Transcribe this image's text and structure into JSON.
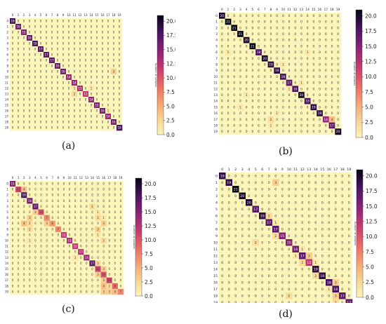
{
  "chart_data": [
    {
      "panel": "a",
      "label": "(a)",
      "type": "heatmap",
      "x": [
        "0",
        "1",
        "2",
        "3",
        "4",
        "5",
        "6",
        "7",
        "8",
        "9",
        "10",
        "11",
        "12",
        "13",
        "14",
        "15",
        "16",
        "17",
        "18",
        "19"
      ],
      "y": [
        "0",
        "1",
        "2",
        "3",
        "4",
        "5",
        "6",
        "7",
        "8",
        "9",
        "10",
        "11",
        "12",
        "13",
        "14",
        "15",
        "16",
        "17",
        "18",
        "19"
      ],
      "diag": [
        18,
        16,
        15,
        16,
        18,
        17,
        17,
        17,
        16,
        16,
        14,
        14,
        13,
        12,
        14,
        15,
        16,
        14,
        16,
        18
      ],
      "off": [
        [
          9,
          18,
          3
        ],
        [
          13,
          11,
          2
        ],
        [
          12,
          11,
          1
        ],
        [
          12,
          14,
          1
        ],
        [
          16,
          17,
          1
        ]
      ],
      "colorbar": {
        "label": "Number of samples",
        "ticks": [
          "0.0",
          "2.5",
          "5.0",
          "7.5",
          "10.0",
          "12.5",
          "15.0",
          "17.5",
          "20.0"
        ],
        "range": [
          0,
          21
        ]
      }
    },
    {
      "panel": "b",
      "label": "(b)",
      "type": "heatmap",
      "x": [
        "0",
        "1",
        "2",
        "3",
        "4",
        "5",
        "6",
        "7",
        "8",
        "9",
        "10",
        "11",
        "12",
        "13",
        "14",
        "15",
        "16",
        "17",
        "18",
        "19"
      ],
      "y": [
        "0",
        "1",
        "2",
        "3",
        "4",
        "5",
        "6",
        "7",
        "8",
        "9",
        "10",
        "11",
        "12",
        "13",
        "14",
        "15",
        "16",
        "17",
        "18",
        "19"
      ],
      "diag": [
        20,
        21,
        21,
        21,
        20,
        21,
        18,
        20,
        19,
        19,
        18,
        17,
        18,
        20,
        18,
        19,
        19,
        14,
        17,
        20
      ],
      "off": [
        [
          17,
          18,
          4
        ],
        [
          17,
          8,
          2
        ],
        [
          18,
          8,
          1
        ],
        [
          12,
          11,
          1
        ],
        [
          11,
          13,
          1
        ],
        [
          16,
          9,
          1
        ],
        [
          6,
          1,
          1
        ],
        [
          13,
          4,
          1
        ],
        [
          15,
          3,
          1
        ],
        [
          8,
          10,
          1
        ],
        [
          6,
          14,
          1
        ]
      ],
      "colorbar": {
        "label": "Number of samples",
        "ticks": [
          "0.0",
          "2.5",
          "5.0",
          "7.5",
          "10.0",
          "12.5",
          "15.0",
          "17.5",
          "20.0"
        ],
        "range": [
          0,
          21
        ]
      }
    },
    {
      "panel": "c",
      "label": "(c)",
      "type": "heatmap",
      "x": [
        "0",
        "1",
        "2",
        "3",
        "4",
        "5",
        "6",
        "7",
        "8",
        "9",
        "10",
        "11",
        "12",
        "13",
        "14",
        "15",
        "16",
        "17",
        "18",
        "19"
      ],
      "y": [
        "0",
        "1",
        "2",
        "3",
        "4",
        "5",
        "6",
        "7",
        "8",
        "9",
        "10",
        "11",
        "12",
        "13",
        "14",
        "15",
        "16",
        "17",
        "18",
        "19"
      ],
      "diag": [
        15,
        11,
        18,
        16,
        17,
        10,
        7,
        6,
        7,
        12,
        13,
        12,
        13,
        14,
        17,
        11,
        10,
        11,
        9,
        7
      ],
      "off": [
        [
          1,
          2,
          4
        ],
        [
          5,
          4,
          3
        ],
        [
          6,
          3,
          3
        ],
        [
          7,
          2,
          4
        ],
        [
          7,
          6,
          3
        ],
        [
          7,
          3,
          2
        ],
        [
          8,
          3,
          2
        ],
        [
          6,
          15,
          2
        ],
        [
          8,
          15,
          3
        ],
        [
          7,
          16,
          3
        ],
        [
          15,
          16,
          3
        ],
        [
          17,
          16,
          3
        ],
        [
          18,
          16,
          4
        ],
        [
          19,
          16,
          3
        ],
        [
          19,
          18,
          4
        ],
        [
          19,
          17,
          3
        ],
        [
          18,
          17,
          2
        ],
        [
          16,
          15,
          3
        ],
        [
          14,
          15,
          2
        ],
        [
          13,
          11,
          1
        ],
        [
          4,
          14,
          2
        ],
        [
          5,
          15,
          1
        ],
        [
          6,
          16,
          1
        ],
        [
          9,
          15,
          1
        ],
        [
          10,
          3,
          1
        ],
        [
          10,
          16,
          2
        ]
      ],
      "colorbar": {
        "label": "Number of samples",
        "ticks": [
          "0.0",
          "2.5",
          "5.0",
          "7.5",
          "10.0",
          "12.5",
          "15.0",
          "17.5",
          "20.0"
        ],
        "range": [
          0,
          21
        ]
      }
    },
    {
      "panel": "d",
      "label": "(d)",
      "type": "heatmap",
      "x": [
        "0",
        "1",
        "2",
        "3",
        "4",
        "5",
        "6",
        "7",
        "8",
        "9",
        "10",
        "11",
        "12",
        "13",
        "14",
        "15",
        "16",
        "17",
        "18",
        "19"
      ],
      "y": [
        "0",
        "1",
        "2",
        "3",
        "4",
        "5",
        "6",
        "7",
        "8",
        "9",
        "10",
        "11",
        "12",
        "13",
        "14",
        "15",
        "16",
        "17",
        "18",
        "19"
      ],
      "diag": [
        19,
        19,
        21,
        20,
        20,
        17,
        19,
        17,
        17,
        15,
        15,
        16,
        17,
        12,
        19,
        19,
        18,
        18,
        17,
        17
      ],
      "off": [
        [
          1,
          8,
          3
        ],
        [
          6,
          7,
          2
        ],
        [
          10,
          5,
          2
        ],
        [
          12,
          11,
          1
        ],
        [
          12,
          13,
          3
        ],
        [
          13,
          12,
          2
        ],
        [
          13,
          14,
          1
        ],
        [
          15,
          14,
          2
        ],
        [
          16,
          17,
          3
        ],
        [
          17,
          16,
          1
        ],
        [
          18,
          10,
          2
        ],
        [
          19,
          17,
          2
        ],
        [
          9,
          8,
          2
        ],
        [
          18,
          17,
          3
        ],
        [
          11,
          12,
          1
        ],
        [
          7,
          8,
          1
        ]
      ],
      "colorbar": {
        "label": "Number of samples",
        "ticks": [
          "0.0",
          "2.5",
          "5.0",
          "7.5",
          "10.0",
          "12.5",
          "15.0",
          "17.5",
          "20.0"
        ],
        "range": [
          0,
          21
        ]
      }
    }
  ]
}
